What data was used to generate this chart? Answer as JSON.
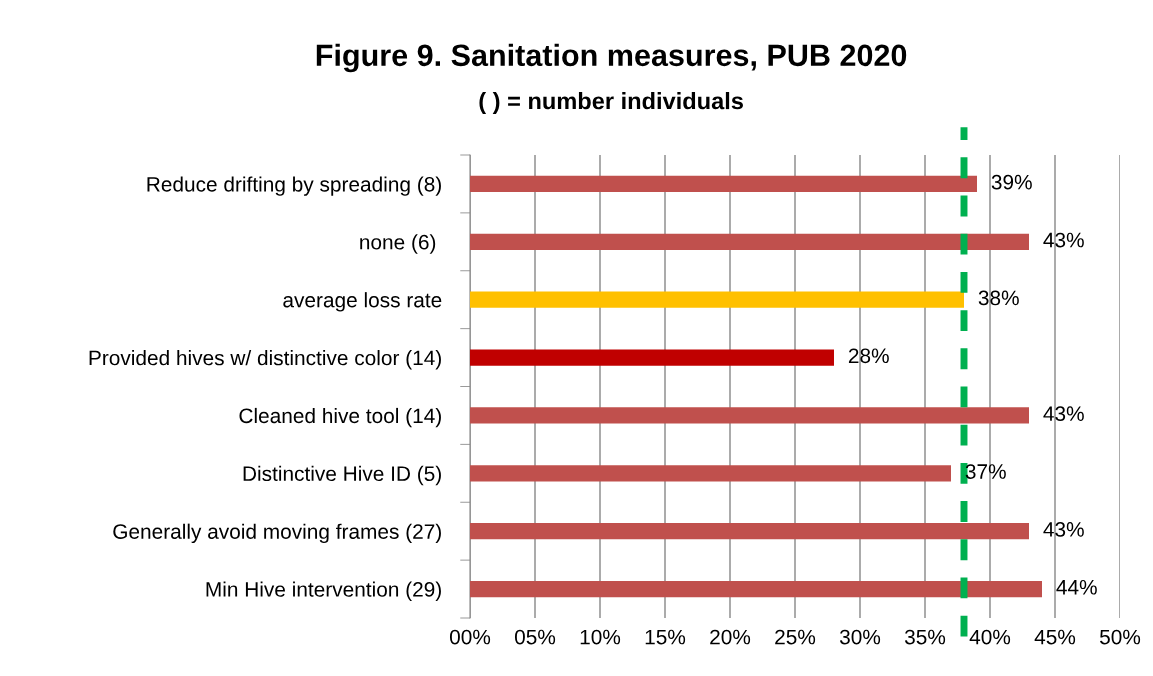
{
  "chart_data": {
    "type": "bar",
    "orientation": "horizontal",
    "title": "Figure 9. Sanitation measures, PUB 2020",
    "subtitle": "( ) = number individuals",
    "categories": [
      "Reduce drifting by spreading (8)",
      "none (6) ",
      "average loss rate",
      "Provided hives w/ distinctive color (14)",
      "Cleaned hive tool (14)",
      "Distinctive Hive ID (5)",
      "Generally avoid moving frames (27)",
      "Min Hive intervention (29)"
    ],
    "values": [
      39,
      43,
      38,
      28,
      43,
      37,
      43,
      44
    ],
    "value_labels": [
      "39%",
      "43%",
      "38%",
      "28%",
      "43%",
      "37%",
      "43%",
      "44%"
    ],
    "colors": [
      "#c0504d",
      "#c0504d",
      "#ffc000",
      "#c00000",
      "#c0504d",
      "#c0504d",
      "#c0504d",
      "#c0504d"
    ],
    "xlim": [
      0,
      50
    ],
    "xticks": [
      {
        "value": 0,
        "label": "00%"
      },
      {
        "value": 5,
        "label": "05%"
      },
      {
        "value": 10,
        "label": "10%"
      },
      {
        "value": 15,
        "label": "15%"
      },
      {
        "value": 20,
        "label": "20%"
      },
      {
        "value": 25,
        "label": "25%"
      },
      {
        "value": 30,
        "label": "30%"
      },
      {
        "value": 35,
        "label": "35%"
      },
      {
        "value": 40,
        "label": "40%"
      },
      {
        "value": 45,
        "label": "45%"
      },
      {
        "value": 50,
        "label": "50%"
      }
    ],
    "grid": "x",
    "ref_lines": [
      {
        "axis": "x",
        "value": 38,
        "color": "#00b050",
        "line_style": "dashed"
      }
    ]
  }
}
